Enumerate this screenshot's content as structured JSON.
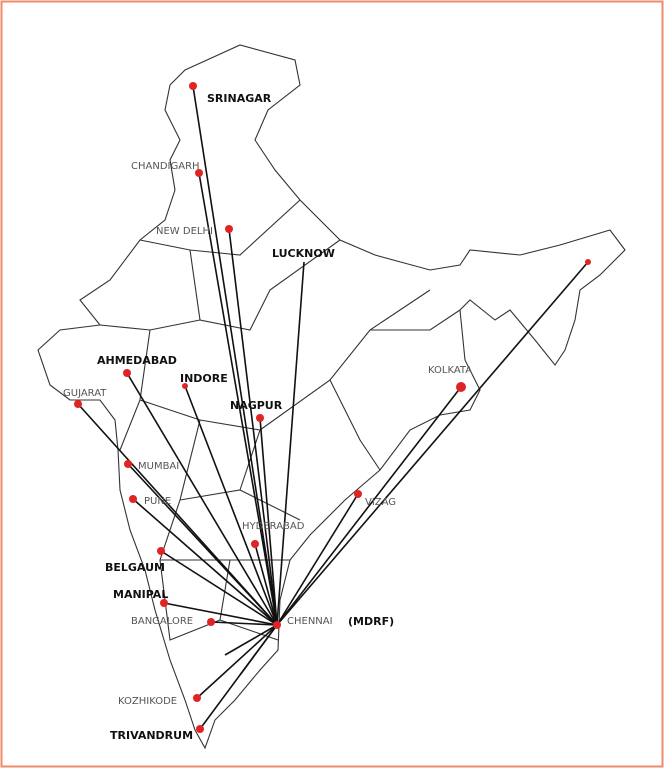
{
  "hub": {
    "label": "CHENNAI",
    "note": "(MDRF)"
  },
  "cities": [
    {
      "label": "SRINAGAR"
    },
    {
      "label": "CHANDIGARH"
    },
    {
      "label": "NEW DELHI"
    },
    {
      "label": "LUCKNOW"
    },
    {
      "label": "AHMEDABAD"
    },
    {
      "label": "INDORE"
    },
    {
      "label": "GUJARAT"
    },
    {
      "label": "NAGPUR"
    },
    {
      "label": "KOLKATA"
    },
    {
      "label": "MUMBAI"
    },
    {
      "label": "PUNE"
    },
    {
      "label": "VIZAG"
    },
    {
      "label": "HYDERABAD"
    },
    {
      "label": "BELGAUM"
    },
    {
      "label": "MANIPAL"
    },
    {
      "label": "BANGALORE"
    },
    {
      "label": "KOZHIKODE"
    },
    {
      "label": "TRIVANDRUM"
    }
  ]
}
